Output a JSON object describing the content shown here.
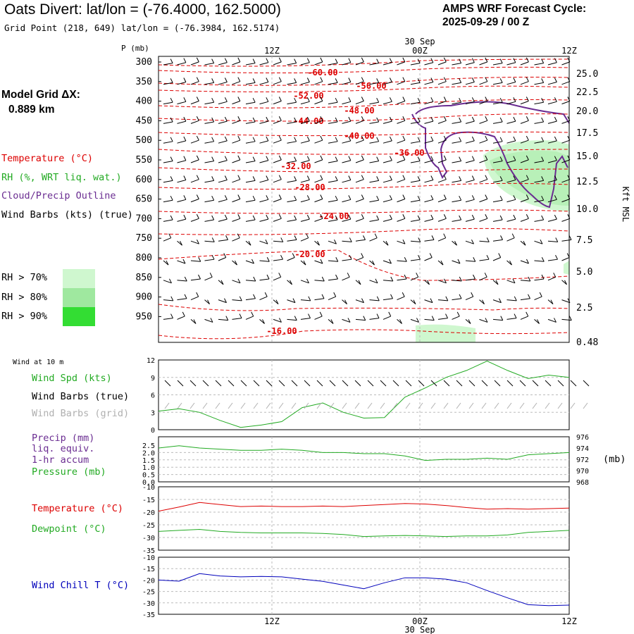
{
  "header": {
    "title": "Oats Divert:  lat/lon = (-76.4000, 162.5000)",
    "subtitle": "Grid Point (218, 649) lat/lon = (-76.3984, 162.5174)",
    "cycle_line1": "AMPS WRF Forecast Cycle:",
    "cycle_line2": "2025-09-29 / 00  Z"
  },
  "sidebar": {
    "model_grid_label": "Model Grid ΔX:",
    "model_grid_value": "0.889 km",
    "legend_temperature": "Temperature (°C)",
    "legend_rh": "RH (%, WRT liq. wat.)",
    "legend_cloud": "Cloud/Precip Outline",
    "legend_wind": "Wind Barbs (kts) (true)",
    "rh_70": "RH > 70%",
    "rh_80": "RH > 80%",
    "rh_90": "RH > 90%",
    "colors": {
      "rh70": "#cff7cf",
      "rh80": "#9fe89f",
      "rh90": "#33dd33",
      "temp": "#dd0000",
      "rh_text": "#22aa22",
      "cloud": "#6a2c91",
      "chill": "#0000bb"
    }
  },
  "time_axis": {
    "top_date": "30 Sep",
    "bottom_date": "30 Sep",
    "ticks": [
      "12Z",
      "00Z",
      "12Z"
    ]
  },
  "chart_data": [
    {
      "type": "contour",
      "name": "upper-air-section",
      "ylabel_left": "P (mb)",
      "ylabel_right": "Kft MSL",
      "pressure_levels": [
        "300",
        "350",
        "400",
        "450",
        "500",
        "550",
        "600",
        "650",
        "700",
        "750",
        "800",
        "850",
        "900",
        "950"
      ],
      "height_levels": [
        "25.0",
        "22.5",
        "20.0",
        "17.5",
        "15.0",
        "12.5",
        "10.0",
        "7.5",
        "5.0",
        "2.5",
        "0.48"
      ],
      "temperature_labels": [
        "-60.00",
        "-56.00",
        "-52.00",
        "-48.00",
        "-44.00",
        "-40.00",
        "-36.00",
        "-32.00",
        "-28.00",
        "-24.00",
        "-20.00",
        "-16.00"
      ]
    },
    {
      "type": "line",
      "name": "wind-panel",
      "panel_title": "Wind at 10 m",
      "yticks": [
        "12",
        "9",
        "6",
        "3",
        "0"
      ],
      "ylim": [
        0,
        12
      ],
      "legend": {
        "speed": "Wind Spd (kts)",
        "barbs_true": "Wind Barbs (true)",
        "barbs_grid": "Wind Barbs (grid)"
      },
      "x_hours": [
        0,
        3,
        6,
        9,
        12,
        15,
        18,
        21,
        24,
        27,
        30,
        33,
        36,
        39,
        42,
        45,
        48,
        51,
        54,
        57,
        60
      ],
      "wind_speed": [
        3.2,
        3.6,
        3.0,
        1.6,
        0.4,
        0.8,
        1.4,
        3.8,
        4.6,
        3.0,
        2.0,
        2.1,
        5.6,
        7.2,
        9.0,
        10.2,
        11.8,
        10.2,
        8.8,
        9.4,
        9.0
      ]
    },
    {
      "type": "line",
      "name": "precip-pressure-panel",
      "yticks_left": [
        "2.5",
        "2.0",
        "1.5",
        "1.0",
        "0.5",
        "0.0"
      ],
      "yticks_right": [
        "976",
        "974",
        "972",
        "970",
        "968"
      ],
      "ylabel_right": "(mb)",
      "legend": {
        "precip": "Precip (mm)",
        "precip2": "liq. equiv.",
        "precip3": "1-hr accum",
        "pressure": "Pressure (mb)"
      },
      "x_hours": [
        0,
        3,
        6,
        9,
        12,
        15,
        18,
        21,
        24,
        27,
        30,
        33,
        36,
        39,
        42,
        45,
        48,
        51,
        54,
        57,
        60
      ],
      "pressure": [
        974.0,
        974.4,
        974.0,
        973.8,
        973.6,
        973.6,
        973.8,
        973.6,
        973.2,
        973.2,
        973.0,
        973.0,
        972.6,
        971.8,
        972.0,
        972.0,
        972.2,
        972.0,
        972.8,
        973.0,
        973.2
      ]
    },
    {
      "type": "line",
      "name": "temp-dewpoint-panel",
      "yticks": [
        "-10",
        "-15",
        "-20",
        "-25",
        "-30",
        "-35"
      ],
      "ylim": [
        -35,
        -10
      ],
      "legend": {
        "temperature": "Temperature (°C)",
        "dewpoint": "Dewpoint (°C)"
      },
      "x_hours": [
        0,
        3,
        6,
        9,
        12,
        15,
        18,
        21,
        24,
        27,
        30,
        33,
        36,
        39,
        42,
        45,
        48,
        51,
        54,
        57,
        60
      ],
      "temperature": [
        -19.6,
        -18.0,
        -16.2,
        -17.0,
        -17.8,
        -17.6,
        -17.8,
        -17.8,
        -17.6,
        -17.8,
        -17.4,
        -17.0,
        -16.6,
        -16.8,
        -17.4,
        -18.2,
        -18.8,
        -18.6,
        -18.8,
        -18.6,
        -18.4
      ],
      "dewpoint": [
        -27.6,
        -27.2,
        -26.8,
        -27.6,
        -28.0,
        -28.2,
        -28.2,
        -28.2,
        -28.4,
        -28.8,
        -29.6,
        -29.4,
        -29.2,
        -29.4,
        -29.6,
        -29.4,
        -29.4,
        -29.0,
        -28.0,
        -27.6,
        -27.2
      ]
    },
    {
      "type": "line",
      "name": "wind-chill-panel",
      "yticks": [
        "-10",
        "-15",
        "-20",
        "-25",
        "-30",
        "-35"
      ],
      "ylim": [
        -35,
        -10
      ],
      "legend": {
        "wind_chill": "Wind Chill T (°C)"
      },
      "x_hours": [
        0,
        3,
        6,
        9,
        12,
        15,
        18,
        21,
        24,
        27,
        30,
        33,
        36,
        39,
        42,
        45,
        48,
        51,
        54,
        57,
        60
      ],
      "wind_chill": [
        -20.0,
        -20.5,
        -17.2,
        -18.2,
        -18.6,
        -18.4,
        -18.6,
        -19.6,
        -20.6,
        -22.2,
        -23.8,
        -21.2,
        -19.0,
        -19.0,
        -19.6,
        -21.2,
        -24.6,
        -27.8,
        -30.8,
        -31.2,
        -31.0
      ]
    }
  ]
}
